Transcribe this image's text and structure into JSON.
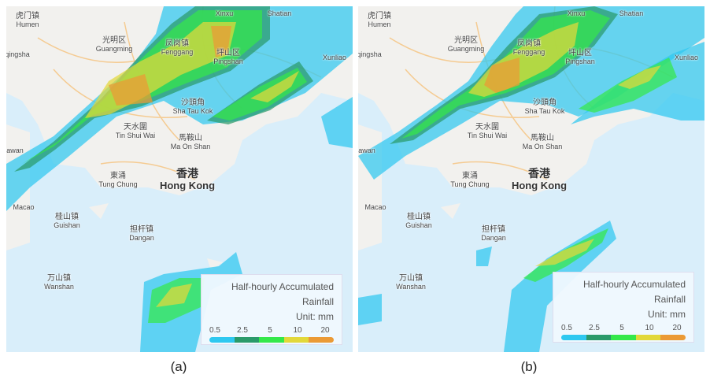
{
  "panels": [
    {
      "caption": "(a)"
    },
    {
      "caption": "(b)"
    }
  ],
  "places": [
    {
      "zh": "虎门镇",
      "en": "Humen"
    },
    {
      "zh": "光明区",
      "en": "Guangming"
    },
    {
      "zh": "凤岗镇",
      "en": "Fenggang"
    },
    {
      "zh": "坪山区",
      "en": "Pingshan"
    },
    {
      "zh": "沙頭角",
      "en": "Sha Tau Kok"
    },
    {
      "zh": "天水圍",
      "en": "Tin Shui Wai"
    },
    {
      "zh": "馬鞍山",
      "en": "Ma On Shan"
    },
    {
      "zh": "香港",
      "en": "Hong Kong"
    },
    {
      "zh": "東涌",
      "en": "Tung Chung"
    },
    {
      "zh": "",
      "en": "Macao"
    },
    {
      "zh": "桂山镇",
      "en": "Guishan"
    },
    {
      "zh": "担杆镇",
      "en": "Dangan"
    },
    {
      "zh": "万山镇",
      "en": "Wanshan"
    },
    {
      "zh": "",
      "en": "Xinxu"
    },
    {
      "zh": "",
      "en": "Shatian"
    },
    {
      "zh": "",
      "en": "Xunliao"
    },
    {
      "zh": "",
      "en": "qingsha"
    },
    {
      "zh": "",
      "en": "iawan"
    }
  ],
  "legend": {
    "title_line1": "Half-hourly Accumulated",
    "title_line2": "Rainfall",
    "unit": "Unit: mm",
    "ticks": [
      "0.5",
      "2.5",
      "5",
      "10",
      "20"
    ],
    "colors": [
      "#2ec8f0",
      "#2a9a6a",
      "#34e84a",
      "#e2d83a",
      "#eb9a35"
    ]
  },
  "colors": {
    "sea": "#d9eefa",
    "land": "#f2f1ee",
    "road": "#f5c27a"
  }
}
